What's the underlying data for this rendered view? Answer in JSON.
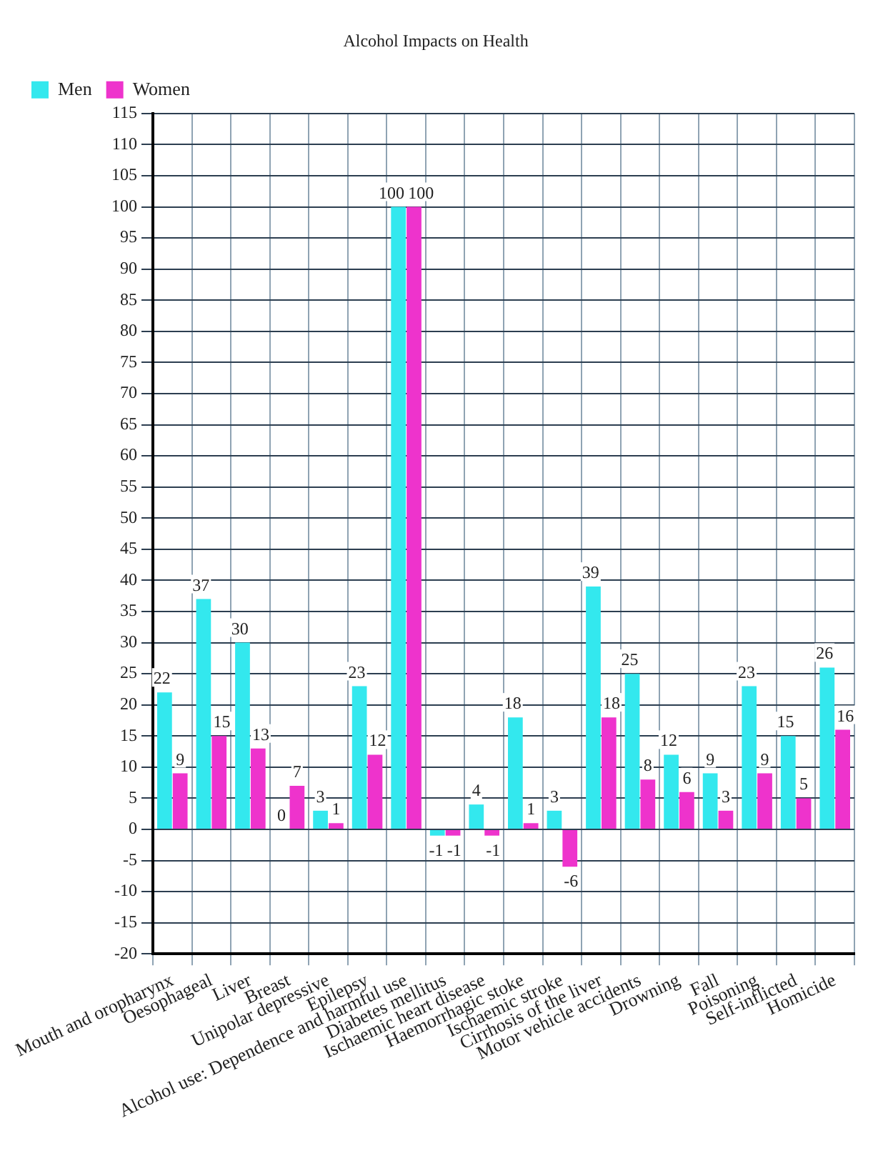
{
  "chart_data": {
    "type": "bar",
    "title": "Alcohol Impacts on Health",
    "categories": [
      "Mouth and oropharynx",
      "Oesophageal",
      "Liver",
      "Breast",
      "Unipolar depressive",
      "Epilepsy",
      "Alcohol use: Dependence and harmful use",
      "Diabetes mellitus",
      "Ischaemic heart disease",
      "Haemorrhagic stoke",
      "Ischaemic stroke",
      "Cirrhosis of the liver",
      "Motor vehicle accidents",
      "Drowning",
      "Fall",
      "Poisoning",
      "Self-inflicted",
      "Homicide"
    ],
    "series": [
      {
        "name": "Men",
        "color": "#33e8ee",
        "values": [
          22,
          37,
          30,
          0,
          3,
          23,
          100,
          -1,
          4,
          18,
          3,
          39,
          25,
          12,
          9,
          23,
          15,
          26
        ]
      },
      {
        "name": "Women",
        "color": "#ee33cc",
        "values": [
          9,
          15,
          13,
          7,
          1,
          12,
          100,
          -1,
          -1,
          1,
          -6,
          18,
          8,
          6,
          3,
          9,
          5,
          16
        ]
      }
    ],
    "ylim": [
      -20,
      115
    ],
    "yticks": [
      -20,
      -15,
      -10,
      -5,
      0,
      5,
      10,
      15,
      20,
      25,
      30,
      35,
      40,
      45,
      50,
      55,
      60,
      65,
      70,
      75,
      80,
      85,
      90,
      95,
      100,
      105,
      110,
      115
    ],
    "grid": true,
    "legend": "top left",
    "data_labels": true
  }
}
